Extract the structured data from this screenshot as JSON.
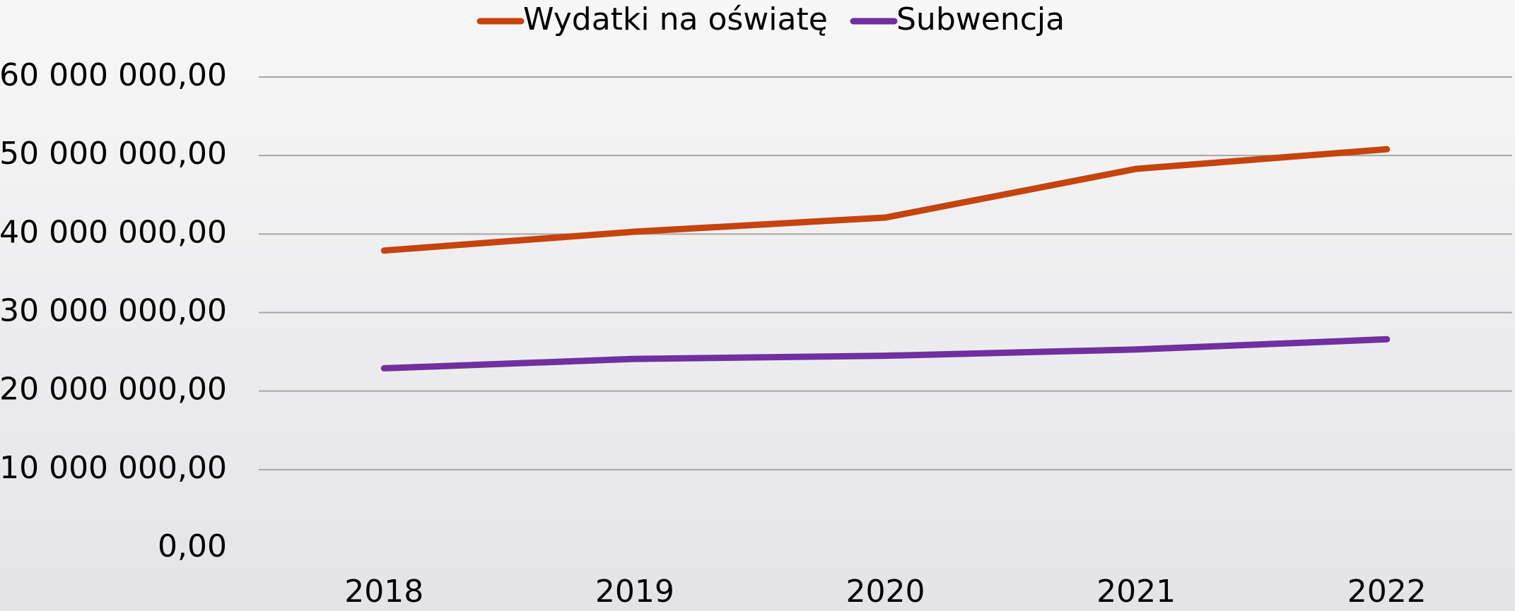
{
  "chart_data": {
    "type": "line",
    "categories": [
      "2018",
      "2019",
      "2020",
      "2021",
      "2022"
    ],
    "series": [
      {
        "name": "Wydatki na oświatę",
        "color": "#c5440f",
        "values": [
          37900000,
          40300000,
          42100000,
          48300000,
          50800000
        ]
      },
      {
        "name": "Subwencja",
        "color": "#7030a0",
        "values": [
          22900000,
          24100000,
          24500000,
          25300000,
          26600000
        ]
      }
    ],
    "ylim": [
      0,
      60000000
    ],
    "yticks": [
      {
        "value": 0,
        "label": "0,00"
      },
      {
        "value": 10000000,
        "label": "10 000 000,00"
      },
      {
        "value": 20000000,
        "label": "20 000 000,00"
      },
      {
        "value": 30000000,
        "label": "30 000 000,00"
      },
      {
        "value": 40000000,
        "label": "40 000 000,00"
      },
      {
        "value": 50000000,
        "label": "50 000 000,00"
      },
      {
        "value": 60000000,
        "label": "60 000 000,00"
      }
    ],
    "grid": true,
    "legend": "top"
  }
}
